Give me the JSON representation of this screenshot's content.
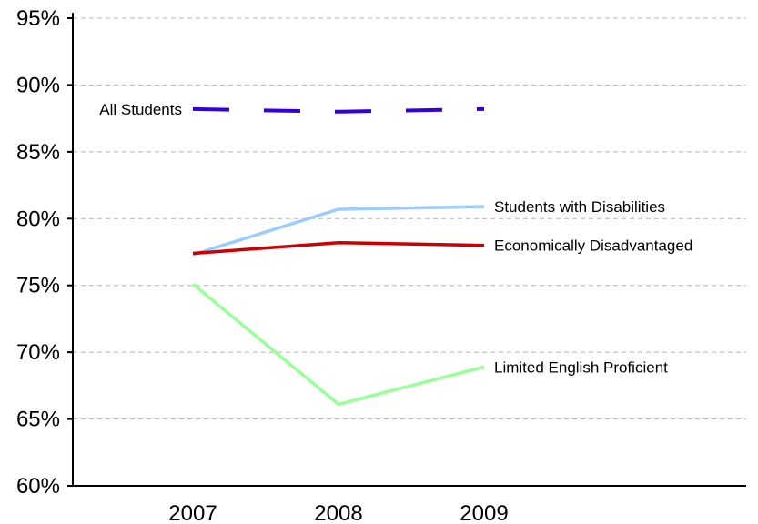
{
  "chart_data": {
    "type": "line",
    "title": "",
    "xlabel": "",
    "ylabel": "",
    "categories": [
      "2007",
      "2008",
      "2009"
    ],
    "ylim": [
      60,
      95
    ],
    "yticks": [
      "60%",
      "65%",
      "70%",
      "75%",
      "80%",
      "85%",
      "90%",
      "95%"
    ],
    "grid": true,
    "series": [
      {
        "name": "All Students",
        "values": [
          88.2,
          88.0,
          88.2
        ],
        "color": "#3300dd",
        "style": "dashed",
        "label_side": "left"
      },
      {
        "name": "Students with Disabilities",
        "values": [
          77.3,
          80.7,
          80.9
        ],
        "color": "#99ccff",
        "style": "solid",
        "label_side": "right"
      },
      {
        "name": "Economically Disadvantaged",
        "values": [
          77.4,
          78.2,
          78.0
        ],
        "color": "#cc0000",
        "style": "solid",
        "label_side": "right"
      },
      {
        "name": "Limited English Proficient",
        "values": [
          75.1,
          66.1,
          68.9
        ],
        "color": "#99ff99",
        "style": "solid",
        "label_side": "right"
      }
    ]
  }
}
